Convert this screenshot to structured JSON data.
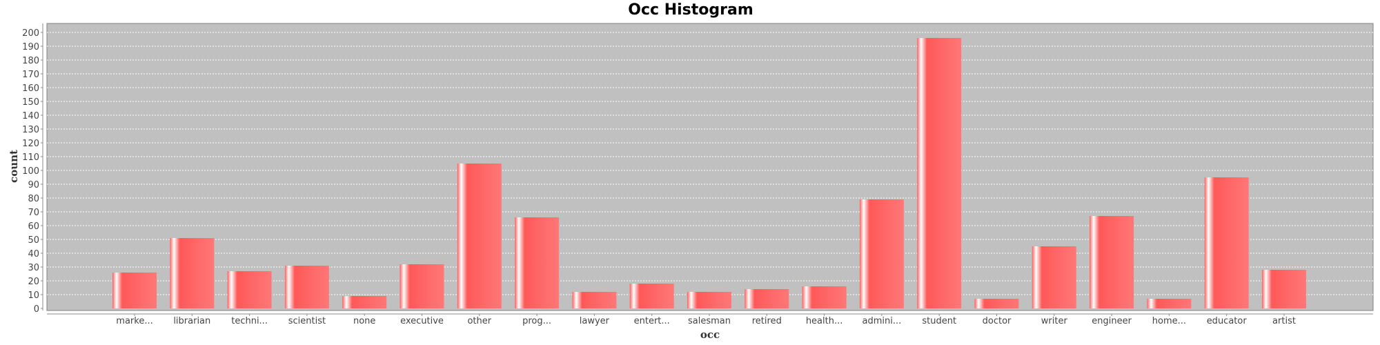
{
  "chart_data": {
    "type": "bar",
    "title": "Occ Histogram",
    "xlabel": "occ",
    "ylabel": "count",
    "categories": [
      "marke...",
      "librarian",
      "techni...",
      "scientist",
      "none",
      "executive",
      "other",
      "prog...",
      "lawyer",
      "entert...",
      "salesman",
      "retired",
      "health...",
      "admini...",
      "student",
      "doctor",
      "writer",
      "engineer",
      "home...",
      "educator",
      "artist"
    ],
    "values": [
      26,
      51,
      27,
      31,
      9,
      32,
      105,
      66,
      12,
      18,
      12,
      14,
      16,
      79,
      196,
      7,
      45,
      67,
      7,
      95,
      28
    ],
    "ylim": [
      0,
      205
    ],
    "yticks": [
      "0",
      "10",
      "20",
      "30",
      "40",
      "50",
      "60",
      "70",
      "80",
      "90",
      "100",
      "110",
      "120",
      "130",
      "140",
      "150",
      "160",
      "170",
      "180",
      "190",
      "200"
    ],
    "grid": true,
    "legend": "none",
    "colors": {
      "bar": "#ff5e5e",
      "bar_highlight": "#ffffff",
      "plot_background": "#c0c0c0",
      "gridline": "#ffffff"
    }
  }
}
